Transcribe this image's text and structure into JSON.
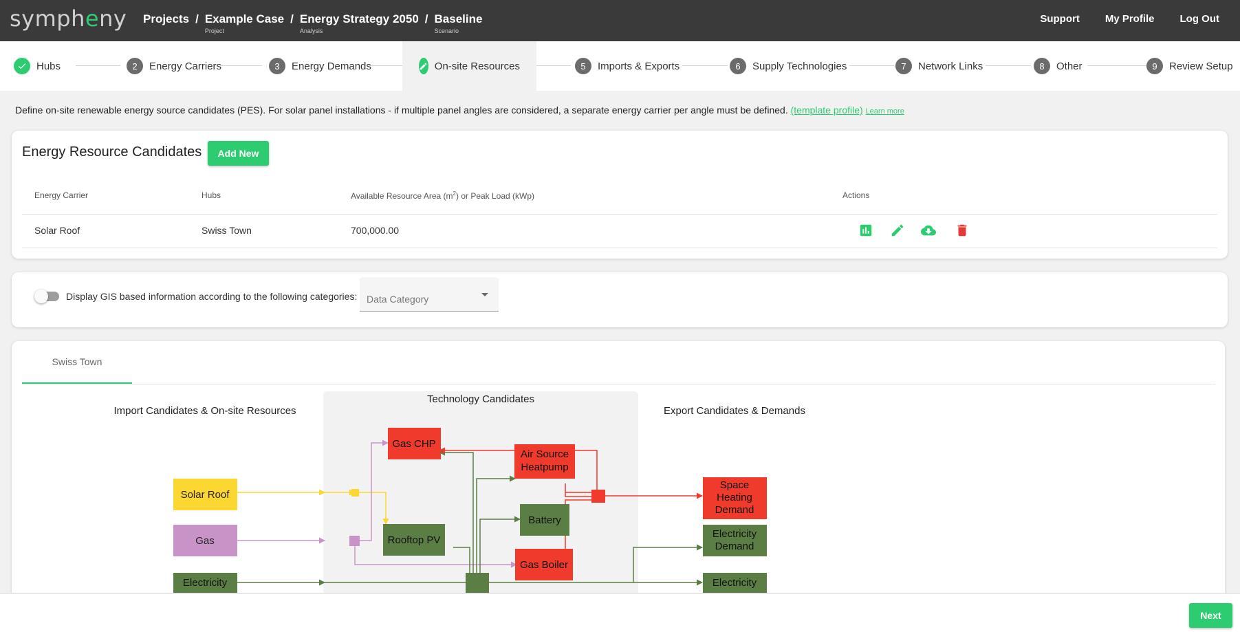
{
  "app": {
    "logo_pre": "symph",
    "logo_hl": "e",
    "logo_post": "ny"
  },
  "breadcrumb": [
    {
      "label": "Projects",
      "sub": ""
    },
    {
      "label": "Example Case",
      "sub": "Project"
    },
    {
      "label": "Energy Strategy 2050",
      "sub": "Analysis"
    },
    {
      "label": "Baseline",
      "sub": "Scenario"
    }
  ],
  "breadcrumb_sep": "/",
  "header_links": {
    "support": "Support",
    "profile": "My Profile",
    "logout": "Log Out"
  },
  "steps": [
    {
      "num": "",
      "label": "Hubs",
      "state": "done"
    },
    {
      "num": "2",
      "label": "Energy Carriers",
      "state": "todo"
    },
    {
      "num": "3",
      "label": "Energy Demands",
      "state": "todo"
    },
    {
      "num": "",
      "label": "On-site Resources",
      "state": "active"
    },
    {
      "num": "5",
      "label": "Imports & Exports",
      "state": "todo"
    },
    {
      "num": "6",
      "label": "Supply Technologies",
      "state": "todo"
    },
    {
      "num": "7",
      "label": "Network Links",
      "state": "todo"
    },
    {
      "num": "8",
      "label": "Other",
      "state": "todo"
    },
    {
      "num": "9",
      "label": "Review Setup",
      "state": "todo"
    }
  ],
  "info": {
    "text": "Define on-site renewable energy source candidates (PES). For solar panel installations - if multiple panel angles are considered, a separate energy carrier per angle must be defined.",
    "template_link": "(template profile)",
    "learn_more": "Learn more"
  },
  "resources": {
    "title": "Energy Resource Candidates",
    "add_label": "Add New",
    "columns": {
      "carrier": "Energy Carrier",
      "hubs": "Hubs",
      "area_pre": "Available Resource Area (m",
      "area_sup": "2",
      "area_post": ") or Peak Load (kWp)",
      "actions": "Actions"
    },
    "rows": [
      {
        "carrier": "Solar Roof",
        "hubs": "Swiss Town",
        "area": "700,000.00"
      }
    ]
  },
  "gis": {
    "label": "Display GIS based information according to the following categories:",
    "select_placeholder": "Data Category"
  },
  "tab": "Swiss Town",
  "diagram": {
    "col_import": "Import Candidates & On-site Resources",
    "col_tech": "Technology Candidates",
    "col_export": "Export Candidates & Demands",
    "imports": {
      "solar": "Solar Roof",
      "gas": "Gas",
      "electricity": "Electricity"
    },
    "tech": {
      "chp": "Gas CHP",
      "heatpump_1": "Air Source",
      "heatpump_2": "Heatpump",
      "battery": "Battery",
      "pv": "Rooftop PV",
      "boiler": "Gas Boiler"
    },
    "exports": {
      "heat_1": "Space",
      "heat_2": "Heating",
      "heat_3": "Demand",
      "elec_1": "Electricity",
      "elec_2": "Demand",
      "elec_export": "Electricity"
    },
    "colors": {
      "red": "#f03a2b",
      "green": "#5b7e44",
      "yellow": "#fcd731",
      "purple": "#c894c8"
    }
  },
  "next_label": "Next"
}
